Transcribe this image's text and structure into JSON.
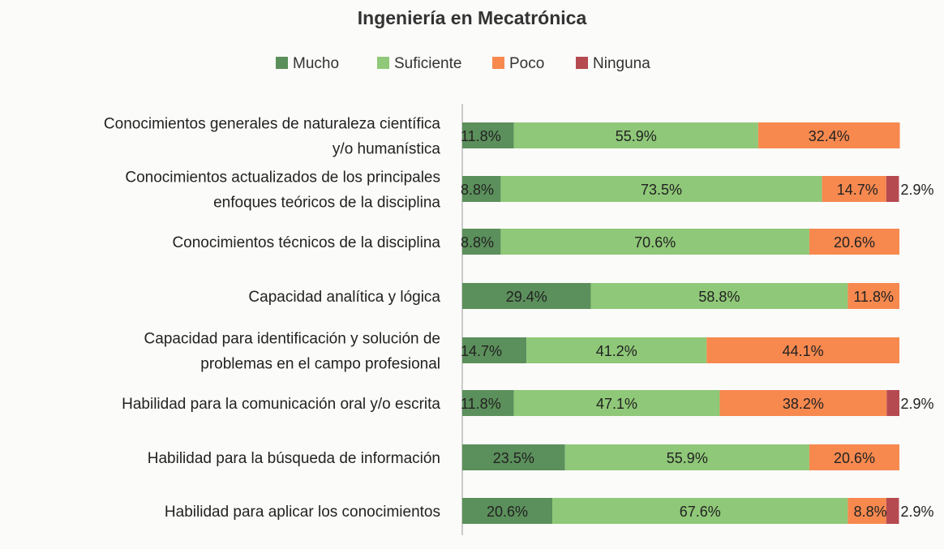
{
  "chart_data": {
    "type": "bar",
    "orientation": "horizontal",
    "stacked": "percent",
    "title": "Ingeniería en Mecatrónica",
    "legend_position": "top",
    "categories": [
      [
        "Conocimientos generales de naturaleza científica",
        "y/o humanística"
      ],
      [
        "Conocimientos actualizados de los principales",
        "enfoques teóricos de la disciplina"
      ],
      [
        "Conocimientos técnicos de la disciplina"
      ],
      [
        "Capacidad analítica y lógica"
      ],
      [
        "Capacidad para identificación y solución de",
        "problemas en el campo profesional"
      ],
      [
        "Habilidad para la comunicación oral y/o escrita"
      ],
      [
        "Habilidad para la búsqueda de información"
      ],
      [
        "Habilidad para aplicar los conocimientos"
      ]
    ],
    "series": [
      {
        "name": "Mucho",
        "color": "#5b8f5b",
        "values": [
          11.8,
          8.8,
          8.8,
          29.4,
          14.7,
          11.8,
          23.5,
          20.6
        ]
      },
      {
        "name": "Suficiente",
        "color": "#8fc878",
        "values": [
          55.9,
          73.5,
          70.6,
          58.8,
          41.2,
          47.1,
          55.9,
          67.6
        ]
      },
      {
        "name": "Poco",
        "color": "#f7894f",
        "values": [
          32.4,
          14.7,
          20.6,
          11.8,
          44.1,
          38.2,
          20.6,
          8.8
        ]
      },
      {
        "name": "Ninguna",
        "color": "#b54a50",
        "values": [
          0,
          2.9,
          0,
          0,
          0,
          2.9,
          0,
          2.9
        ]
      }
    ],
    "value_format": "{v}%",
    "xlim": [
      0,
      100
    ],
    "grid": false
  }
}
